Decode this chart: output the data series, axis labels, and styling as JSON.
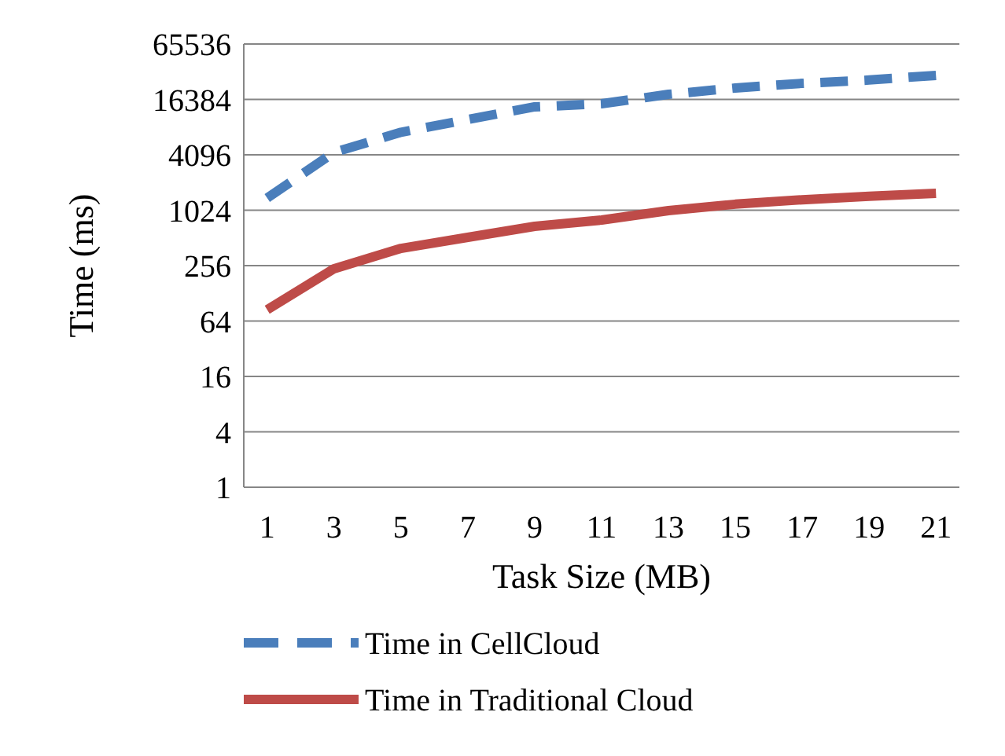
{
  "chart_data": {
    "type": "line",
    "xlabel": "Task Size (MB)",
    "ylabel": "Time (ms)",
    "x": [
      1,
      3,
      5,
      7,
      9,
      11,
      13,
      15,
      17,
      19,
      21
    ],
    "xlim": [
      0.3,
      21.7
    ],
    "xticks": [
      1,
      3,
      5,
      7,
      9,
      11,
      13,
      15,
      17,
      19,
      21
    ],
    "ylim": [
      1,
      65536
    ],
    "yticks": [
      1,
      4,
      16,
      64,
      256,
      1024,
      4096,
      16384,
      65536
    ],
    "log": true,
    "grid": "y",
    "legend": "bottom",
    "series": [
      {
        "name": "Time in CellCloud",
        "color": "#4a7ebb",
        "line_style": "dashed",
        "values": [
          1390,
          4350,
          7200,
          9900,
          13600,
          14700,
          18600,
          21800,
          24500,
          26600,
          29900
        ]
      },
      {
        "name": "Time in Traditional Cloud",
        "color": "#be4b48",
        "line_style": "solid",
        "values": [
          85,
          237,
          394,
          520,
          684,
          800,
          1015,
          1190,
          1330,
          1450,
          1565
        ]
      }
    ]
  }
}
